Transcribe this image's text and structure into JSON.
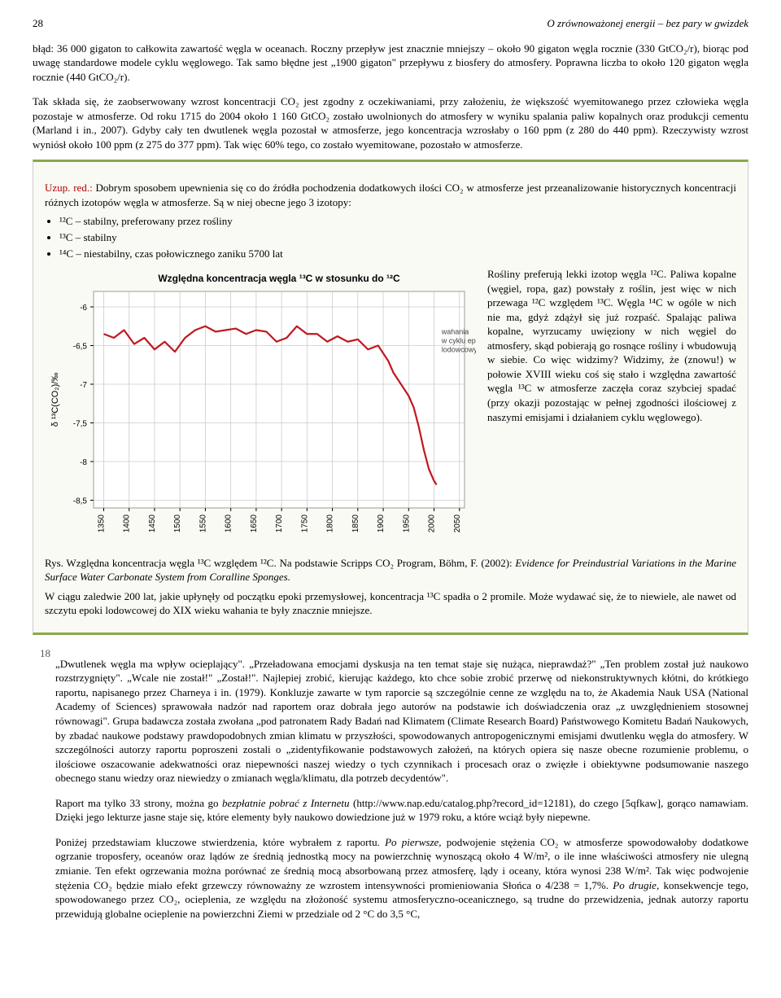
{
  "header": {
    "page_number": "28",
    "running_title": "O zrównoważonej energii – bez pary w gwizdek"
  },
  "para1": "błąd: 36 000 gigaton to całkowita zawartość węgla w oceanach. Roczny przepływ jest znacznie mniejszy – około 90 gigaton węgla rocznie (330 GtCO₂/r), biorąc pod uwagę standardowe modele cyklu węglowego. Tak samo błędne jest „1900 gigaton\" przepływu z biosfery do atmosfery. Poprawna liczba to około 120 gigaton węgla rocznie (440 GtCO₂/r).",
  "para2": "Tak składa się, że zaobserwowany wzrost koncentracji CO₂ jest zgodny z oczekiwaniami, przy założeniu, że większość wyemitowanego przez człowieka węgla pozostaje w atmosferze. Od roku 1715 do 2004 około 1 160 GtCO₂ zostało uwolnionych do atmosfery w wyniku spalania paliw kopalnych oraz produkcji cementu (Marland i in., 2007). Gdyby cały ten dwutlenek węgla pozostał w atmosferze, jego koncentracja wzrosłaby o 160 ppm (z 280 do 440 ppm). Rzeczywisty wzrost wyniósł około 100 ppm (z 275 do 377 ppm). Tak więc 60% tego, co zostało wyemitowane, pozostało w atmosferze.",
  "inset": {
    "lead_label": "Uzup. red.:",
    "lead_text": " Dobrym sposobem upewnienia się co do źródła pochodzenia dodatkowych ilości CO₂ w atmosferze jest przeanalizowanie historycznych koncentracji różnych izotopów węgla w atmosferze. Są w niej obecne jego 3 izotopy:",
    "bullets": [
      "¹²C – stabilny, preferowany przez rośliny",
      "¹³C – stabilny",
      "¹⁴C – niestabilny, czas połowicznego zaniku 5700 lat"
    ],
    "chart": {
      "type": "line",
      "title": "Względna koncentracja węgla ¹³C w stosunku do ¹²C",
      "title_fontsize": 12,
      "title_weight": "bold",
      "ylabel": "δ ¹³C(CO₂)/‰",
      "annotation": "wahania\nw cyklu epok\nlodowcowych",
      "annotation_fontsize": 9,
      "x_ticks": [
        1350,
        1400,
        1450,
        1500,
        1550,
        1600,
        1650,
        1700,
        1750,
        1800,
        1850,
        1900,
        1950,
        2000,
        2050
      ],
      "y_ticks": [
        -6,
        -6.5,
        -7,
        -7.5,
        -8,
        -8.5
      ],
      "xlim": [
        1330,
        2060
      ],
      "ylim": [
        -8.6,
        -5.8
      ],
      "line_color": "#c0181f",
      "line_width": 2.2,
      "background_color": "#ffffff",
      "grid_color": "#cccccc",
      "border_color": "#999999",
      "tick_fontsize": 10,
      "series": [
        {
          "x": 1350,
          "y": -6.35
        },
        {
          "x": 1370,
          "y": -6.4
        },
        {
          "x": 1390,
          "y": -6.3
        },
        {
          "x": 1410,
          "y": -6.48
        },
        {
          "x": 1430,
          "y": -6.4
        },
        {
          "x": 1450,
          "y": -6.55
        },
        {
          "x": 1470,
          "y": -6.45
        },
        {
          "x": 1490,
          "y": -6.58
        },
        {
          "x": 1510,
          "y": -6.4
        },
        {
          "x": 1530,
          "y": -6.3
        },
        {
          "x": 1550,
          "y": -6.25
        },
        {
          "x": 1570,
          "y": -6.32
        },
        {
          "x": 1590,
          "y": -6.3
        },
        {
          "x": 1610,
          "y": -6.28
        },
        {
          "x": 1630,
          "y": -6.35
        },
        {
          "x": 1650,
          "y": -6.3
        },
        {
          "x": 1670,
          "y": -6.32
        },
        {
          "x": 1690,
          "y": -6.45
        },
        {
          "x": 1710,
          "y": -6.4
        },
        {
          "x": 1730,
          "y": -6.25
        },
        {
          "x": 1750,
          "y": -6.35
        },
        {
          "x": 1770,
          "y": -6.35
        },
        {
          "x": 1790,
          "y": -6.45
        },
        {
          "x": 1810,
          "y": -6.38
        },
        {
          "x": 1830,
          "y": -6.45
        },
        {
          "x": 1850,
          "y": -6.42
        },
        {
          "x": 1870,
          "y": -6.55
        },
        {
          "x": 1890,
          "y": -6.5
        },
        {
          "x": 1900,
          "y": -6.6
        },
        {
          "x": 1910,
          "y": -6.7
        },
        {
          "x": 1920,
          "y": -6.85
        },
        {
          "x": 1930,
          "y": -6.95
        },
        {
          "x": 1940,
          "y": -7.05
        },
        {
          "x": 1950,
          "y": -7.15
        },
        {
          "x": 1960,
          "y": -7.3
        },
        {
          "x": 1970,
          "y": -7.55
        },
        {
          "x": 1980,
          "y": -7.85
        },
        {
          "x": 1990,
          "y": -8.1
        },
        {
          "x": 2000,
          "y": -8.25
        },
        {
          "x": 2005,
          "y": -8.3
        }
      ]
    },
    "side_text": "Rośliny preferują lekki izotop węgla ¹²C. Paliwa kopalne (węgiel, ropa, gaz) powstały z roślin, jest więc w nich przewaga ¹²C względem ¹³C. Węgla ¹⁴C w ogóle w nich nie ma, gdyż zdążył się już rozpaść. Spalając paliwa kopalne, wyrzucamy uwięziony w nich węgiel do atmosfery, skąd pobierają go rosnące rośliny i wbudowują w siebie. Co więc widzimy? Widzimy, że (znowu!) w połowie XVIII wieku coś się stało i względna zawartość węgla ¹³C w atmosferze zaczęła coraz szybciej spadać (przy okazji pozostając w pełnej zgodności ilościowej z naszymi emisjami i działaniem cyklu węglowego).",
    "fig_caption_prefix": "Rys. Względna koncentracja węgla ¹³C względem ¹²C. Na podstawie Scripps CO₂ Program, Böhm, F. (2002): ",
    "fig_caption_italic": "Evidence for Preindustrial Variations in the Marine Surface Water Carbonate System from Coralline Sponges.",
    "closing": "W ciągu zaledwie 200 lat, jakie upłynęły od początku epoki przemysłowej, koncentracja ¹³C spadła o 2 promile. Może wydawać się, że to niewiele, ale nawet od szczytu epoki lodowcowej do XIX wieku wahania te były znacznie mniejsze."
  },
  "footnote": {
    "num": "18",
    "p1": "„Dwutlenek węgla ma wpływ ocieplający\". „Przeładowana emocjami dyskusja na ten temat staje się nużąca, nieprawdaż?\" „Ten problem został już naukowo rozstrzygnięty\". „Wcale nie został!\" „Został!\". Najlepiej zrobić, kierując każdego, kto chce sobie zrobić przerwę od niekonstruktywnych kłótni, do krótkiego raportu, napisanego przez Charneya i in. (1979). Konkluzje zawarte w tym raporcie są szczególnie cenne ze względu na to, że Akademia Nauk USA (National Academy of Sciences) sprawowała nadzór nad raportem oraz dobrała jego autorów na podstawie ich doświadczenia oraz „z uwzględnieniem stosownej równowagi\". Grupa badawcza została zwołana „pod patronatem Rady Badań nad Klimatem (Climate Research Board) Państwowego Komitetu Badań Naukowych, by zbadać naukowe podstawy prawdopodobnych zmian klimatu w przyszłości, spowodowanych antropogenicznymi emisjami dwutlenku węgla do atmosfery. W szczególności autorzy raportu poproszeni zostali o „zidentyfikowanie podstawowych założeń, na których opiera się nasze obecne rozumienie problemu, o ilościowe oszacowanie adekwatności oraz niepewności naszej wiedzy o tych czynnikach i procesach oraz o zwięzłe i obiektywne podsumowanie naszego obecnego stanu wiedzy oraz niewiedzy o zmianach węgla/klimatu, dla potrzeb decydentów\".",
    "p2_a": "Raport ma tylko 33 strony, można go ",
    "p2_b": "bezpłatnie pobrać z Internetu",
    "p2_c": " (http://www.nap.edu/catalog.php?record_id=12181), do czego [5qfkaw], gorąco namawiam. Dzięki jego lekturze jasne staje się, które elementy były naukowo dowiedzione już w 1979 roku, a które wciąż były niepewne.",
    "p3_a": "Poniżej przedstawiam kluczowe stwierdzenia, które wybrałem z raportu. ",
    "p3_b": "Po pierwsze",
    "p3_c": ", podwojenie stężenia CO₂ w atmosferze spowodowałoby dodatkowe ogrzanie troposfery, oceanów oraz lądów ze średnią jednostką mocy na powierzchnię wynoszącą około 4 W/m², o ile inne właściwości atmosfery nie ulegną zmianie. Ten efekt ogrzewania można porównać ze średnią mocą absorbowaną przez atmosferę, lądy i oceany, która wynosi 238 W/m². Tak więc podwojenie stężenia CO₂ będzie miało efekt grzewczy równoważny ze wzrostem intensywności promieniowania Słońca o 4/238 = 1,7%. ",
    "p3_d": "Po drugie",
    "p3_e": ", konsekwencje tego, spowodowanego przez CO₂, ocieplenia, ze względu na złożoność systemu atmosferyczno-oceanicznego, są trudne do przewidzenia, jednak autorzy raportu przewidują globalne ocieplenie na powierzchni Ziemi w przedziale od 2 °C do 3,5 °C,"
  }
}
